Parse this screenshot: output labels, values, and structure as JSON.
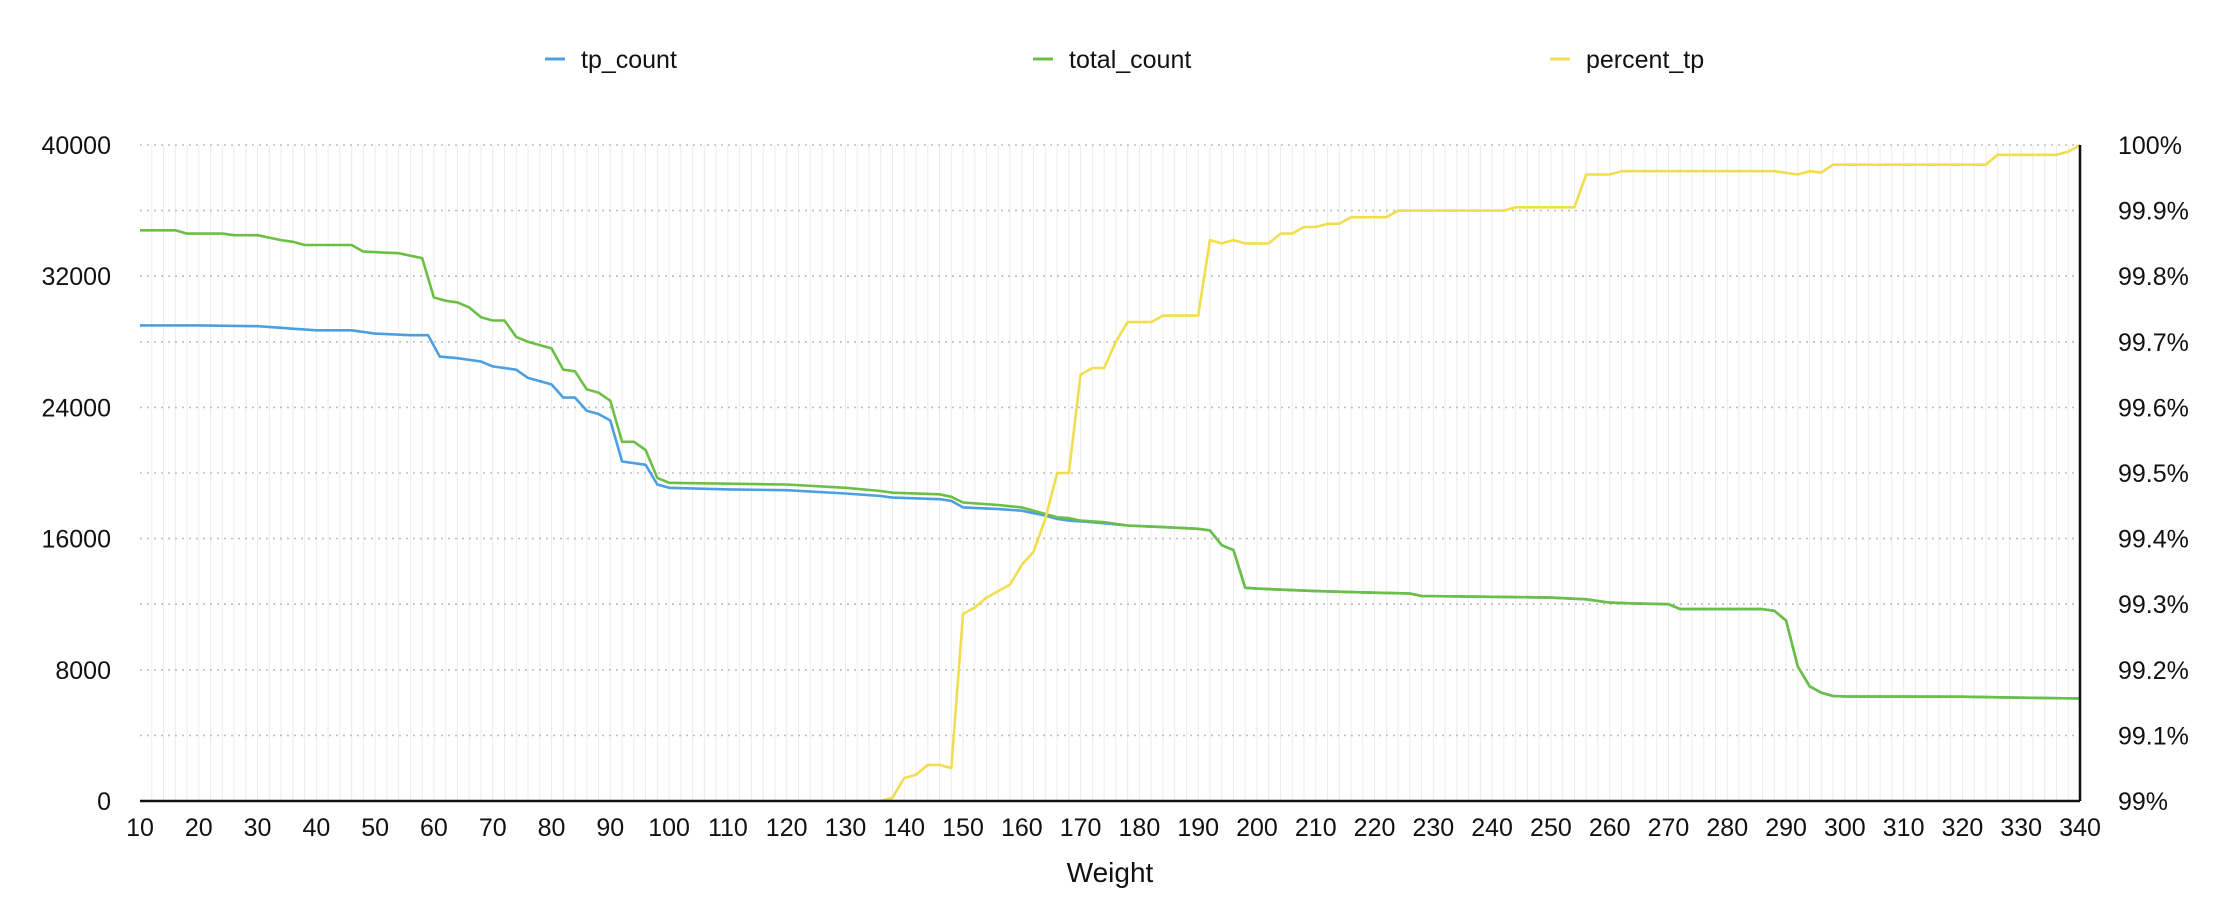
{
  "chart_data": {
    "type": "line",
    "title": "",
    "xlabel": "Weight",
    "ylabel": "",
    "y2label": "",
    "xlim": [
      10,
      340
    ],
    "ylim": [
      0,
      40000
    ],
    "y2lim": [
      99,
      100
    ],
    "x_ticks": [
      10,
      20,
      30,
      40,
      50,
      60,
      70,
      80,
      90,
      100,
      110,
      120,
      130,
      140,
      150,
      160,
      170,
      180,
      190,
      200,
      210,
      220,
      230,
      240,
      250,
      260,
      270,
      280,
      290,
      300,
      310,
      320,
      330,
      340
    ],
    "y_ticks": [
      0,
      8000,
      16000,
      24000,
      32000,
      40000
    ],
    "y2_ticks": [
      99,
      99.1,
      99.2,
      99.3,
      99.4,
      99.5,
      99.6,
      99.7,
      99.8,
      99.9,
      100
    ],
    "y_tick_labels": [
      "0",
      "8000",
      "16000",
      "24000",
      "32000",
      "40000"
    ],
    "y2_tick_labels": [
      "99%",
      "99.1%",
      "99.2%",
      "99.3%",
      "99.4%",
      "99.5%",
      "99.6%",
      "99.7%",
      "99.8%",
      "99.9%",
      "100%"
    ],
    "grid": true,
    "legend_position": "top",
    "series": [
      {
        "name": "tp_count",
        "axis": "left",
        "color": "#4c9fe0",
        "points": [
          [
            10,
            29000
          ],
          [
            20,
            29000
          ],
          [
            30,
            28950
          ],
          [
            36,
            28800
          ],
          [
            40,
            28700
          ],
          [
            46,
            28700
          ],
          [
            50,
            28500
          ],
          [
            56,
            28400
          ],
          [
            59,
            28400
          ],
          [
            61,
            27100
          ],
          [
            64,
            27000
          ],
          [
            68,
            26800
          ],
          [
            70,
            26500
          ],
          [
            74,
            26300
          ],
          [
            76,
            25800
          ],
          [
            80,
            25400
          ],
          [
            82,
            24600
          ],
          [
            84,
            24600
          ],
          [
            86,
            23800
          ],
          [
            88,
            23600
          ],
          [
            90,
            23200
          ],
          [
            92,
            20700
          ],
          [
            96,
            20500
          ],
          [
            98,
            19300
          ],
          [
            100,
            19100
          ],
          [
            110,
            19000
          ],
          [
            120,
            18950
          ],
          [
            130,
            18750
          ],
          [
            136,
            18600
          ],
          [
            138,
            18500
          ],
          [
            146,
            18400
          ],
          [
            148,
            18300
          ],
          [
            150,
            17900
          ],
          [
            156,
            17800
          ],
          [
            160,
            17700
          ],
          [
            164,
            17400
          ],
          [
            166,
            17200
          ],
          [
            168,
            17100
          ],
          [
            172,
            17000
          ],
          [
            178,
            16800
          ],
          [
            184,
            16700
          ],
          [
            190,
            16600
          ],
          [
            192,
            16500
          ],
          [
            194,
            15600
          ],
          [
            196,
            15300
          ],
          [
            198,
            13000
          ],
          [
            200,
            12950
          ],
          [
            210,
            12800
          ],
          [
            220,
            12700
          ],
          [
            226,
            12650
          ],
          [
            228,
            12500
          ],
          [
            240,
            12450
          ],
          [
            250,
            12400
          ],
          [
            256,
            12300
          ],
          [
            260,
            12100
          ],
          [
            264,
            12050
          ],
          [
            270,
            12000
          ],
          [
            272,
            11700
          ],
          [
            280,
            11700
          ],
          [
            286,
            11700
          ],
          [
            288,
            11600
          ],
          [
            290,
            11000
          ],
          [
            292,
            8200
          ],
          [
            294,
            7000
          ],
          [
            296,
            6600
          ],
          [
            298,
            6400
          ],
          [
            300,
            6380
          ],
          [
            320,
            6360
          ],
          [
            330,
            6300
          ],
          [
            340,
            6250
          ]
        ]
      },
      {
        "name": "total_count",
        "axis": "left",
        "color": "#6bbf44",
        "points": [
          [
            10,
            34800
          ],
          [
            16,
            34800
          ],
          [
            18,
            34600
          ],
          [
            24,
            34600
          ],
          [
            26,
            34500
          ],
          [
            30,
            34500
          ],
          [
            34,
            34200
          ],
          [
            36,
            34100
          ],
          [
            38,
            33900
          ],
          [
            46,
            33900
          ],
          [
            48,
            33500
          ],
          [
            54,
            33400
          ],
          [
            58,
            33100
          ],
          [
            60,
            30700
          ],
          [
            62,
            30500
          ],
          [
            64,
            30400
          ],
          [
            66,
            30100
          ],
          [
            68,
            29500
          ],
          [
            70,
            29300
          ],
          [
            72,
            29300
          ],
          [
            74,
            28300
          ],
          [
            76,
            28000
          ],
          [
            78,
            27800
          ],
          [
            80,
            27600
          ],
          [
            82,
            26300
          ],
          [
            84,
            26200
          ],
          [
            86,
            25100
          ],
          [
            88,
            24900
          ],
          [
            90,
            24400
          ],
          [
            92,
            21900
          ],
          [
            94,
            21900
          ],
          [
            96,
            21400
          ],
          [
            98,
            19700
          ],
          [
            100,
            19400
          ],
          [
            110,
            19350
          ],
          [
            120,
            19300
          ],
          [
            130,
            19100
          ],
          [
            136,
            18900
          ],
          [
            138,
            18800
          ],
          [
            146,
            18700
          ],
          [
            148,
            18550
          ],
          [
            150,
            18200
          ],
          [
            156,
            18050
          ],
          [
            160,
            17900
          ],
          [
            162,
            17700
          ],
          [
            164,
            17500
          ],
          [
            166,
            17300
          ],
          [
            168,
            17250
          ],
          [
            170,
            17100
          ],
          [
            174,
            17000
          ],
          [
            178,
            16800
          ],
          [
            184,
            16700
          ],
          [
            190,
            16600
          ],
          [
            192,
            16500
          ],
          [
            194,
            15600
          ],
          [
            196,
            15300
          ],
          [
            198,
            13000
          ],
          [
            200,
            12950
          ],
          [
            210,
            12800
          ],
          [
            220,
            12700
          ],
          [
            226,
            12650
          ],
          [
            228,
            12500
          ],
          [
            240,
            12450
          ],
          [
            250,
            12400
          ],
          [
            256,
            12300
          ],
          [
            260,
            12100
          ],
          [
            264,
            12050
          ],
          [
            270,
            12000
          ],
          [
            272,
            11700
          ],
          [
            280,
            11700
          ],
          [
            286,
            11700
          ],
          [
            288,
            11600
          ],
          [
            290,
            11000
          ],
          [
            292,
            8200
          ],
          [
            294,
            7000
          ],
          [
            296,
            6600
          ],
          [
            298,
            6400
          ],
          [
            300,
            6380
          ],
          [
            320,
            6360
          ],
          [
            330,
            6300
          ],
          [
            340,
            6250
          ]
        ]
      },
      {
        "name": "percent_tp",
        "axis": "right",
        "color": "#f2dd4f",
        "points": [
          [
            136,
            99.0
          ],
          [
            138,
            99.005
          ],
          [
            140,
            99.035
          ],
          [
            142,
            99.04
          ],
          [
            144,
            99.055
          ],
          [
            146,
            99.055
          ],
          [
            148,
            99.05
          ],
          [
            150,
            99.285
          ],
          [
            152,
            99.295
          ],
          [
            154,
            99.31
          ],
          [
            156,
            99.32
          ],
          [
            158,
            99.33
          ],
          [
            160,
            99.36
          ],
          [
            162,
            99.38
          ],
          [
            164,
            99.43
          ],
          [
            166,
            99.5
          ],
          [
            168,
            99.5
          ],
          [
            170,
            99.65
          ],
          [
            172,
            99.66
          ],
          [
            174,
            99.66
          ],
          [
            176,
            99.7
          ],
          [
            178,
            99.73
          ],
          [
            182,
            99.73
          ],
          [
            184,
            99.74
          ],
          [
            190,
            99.74
          ],
          [
            192,
            99.855
          ],
          [
            194,
            99.85
          ],
          [
            196,
            99.855
          ],
          [
            198,
            99.85
          ],
          [
            202,
            99.85
          ],
          [
            204,
            99.865
          ],
          [
            206,
            99.865
          ],
          [
            208,
            99.875
          ],
          [
            210,
            99.875
          ],
          [
            212,
            99.88
          ],
          [
            214,
            99.88
          ],
          [
            216,
            99.89
          ],
          [
            222,
            99.89
          ],
          [
            224,
            99.9
          ],
          [
            242,
            99.9
          ],
          [
            244,
            99.905
          ],
          [
            254,
            99.905
          ],
          [
            256,
            99.955
          ],
          [
            260,
            99.955
          ],
          [
            262,
            99.96
          ],
          [
            270,
            99.96
          ],
          [
            288,
            99.96
          ],
          [
            292,
            99.955
          ],
          [
            294,
            99.96
          ],
          [
            296,
            99.958
          ],
          [
            298,
            99.97
          ],
          [
            310,
            99.97
          ],
          [
            324,
            99.97
          ],
          [
            326,
            99.985
          ],
          [
            336,
            99.985
          ],
          [
            338,
            99.99
          ],
          [
            340,
            100
          ]
        ]
      }
    ]
  }
}
